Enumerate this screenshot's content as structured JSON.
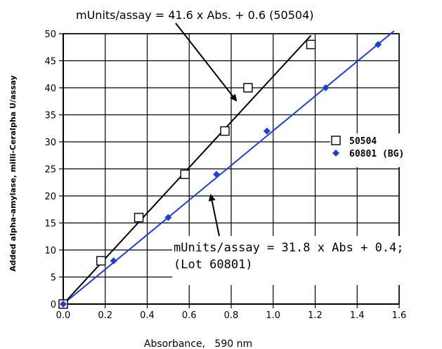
{
  "chart_data": {
    "type": "scatter",
    "xlabel": "Absorbance,   590 nm",
    "ylabel": "Added alpha-amylase,  milli-Ceralpha U/assay",
    "xlim": [
      0,
      1.6
    ],
    "ylim": [
      0,
      50
    ],
    "xticks": [
      "0.0",
      "0.2",
      "0.4",
      "0.6",
      "0.8",
      "1.0",
      "1.2",
      "1.4",
      "1.6"
    ],
    "yticks": [
      "0",
      "5",
      "10",
      "15",
      "20",
      "25",
      "30",
      "35",
      "40",
      "45",
      "50"
    ],
    "grid": true,
    "legend_position": "right",
    "series": [
      {
        "name": "50504",
        "marker": "open-square",
        "color": "#000000",
        "x": [
          0.0,
          0.18,
          0.36,
          0.58,
          0.77,
          0.88,
          1.18
        ],
        "y": [
          0,
          8,
          16,
          24,
          32,
          40,
          48
        ],
        "fit": {
          "slope": 41.6,
          "intercept": 0.6
        }
      },
      {
        "name": "60801 (BG)",
        "marker": "filled-diamond",
        "color": "#1f3fcf",
        "x": [
          0.0,
          0.24,
          0.5,
          0.73,
          0.97,
          1.25,
          1.5
        ],
        "y": [
          0,
          8,
          16,
          24,
          32,
          40,
          48
        ],
        "fit": {
          "slope": 31.8,
          "intercept": 0.4
        }
      }
    ],
    "annotations": [
      {
        "text": "mUnits/assay = 41.6 x Abs. + 0.6 (50504)"
      },
      {
        "text": "mUnits/assay = 31.8 x Abs + 0.4;"
      },
      {
        "text": "(Lot 60801)"
      }
    ]
  }
}
